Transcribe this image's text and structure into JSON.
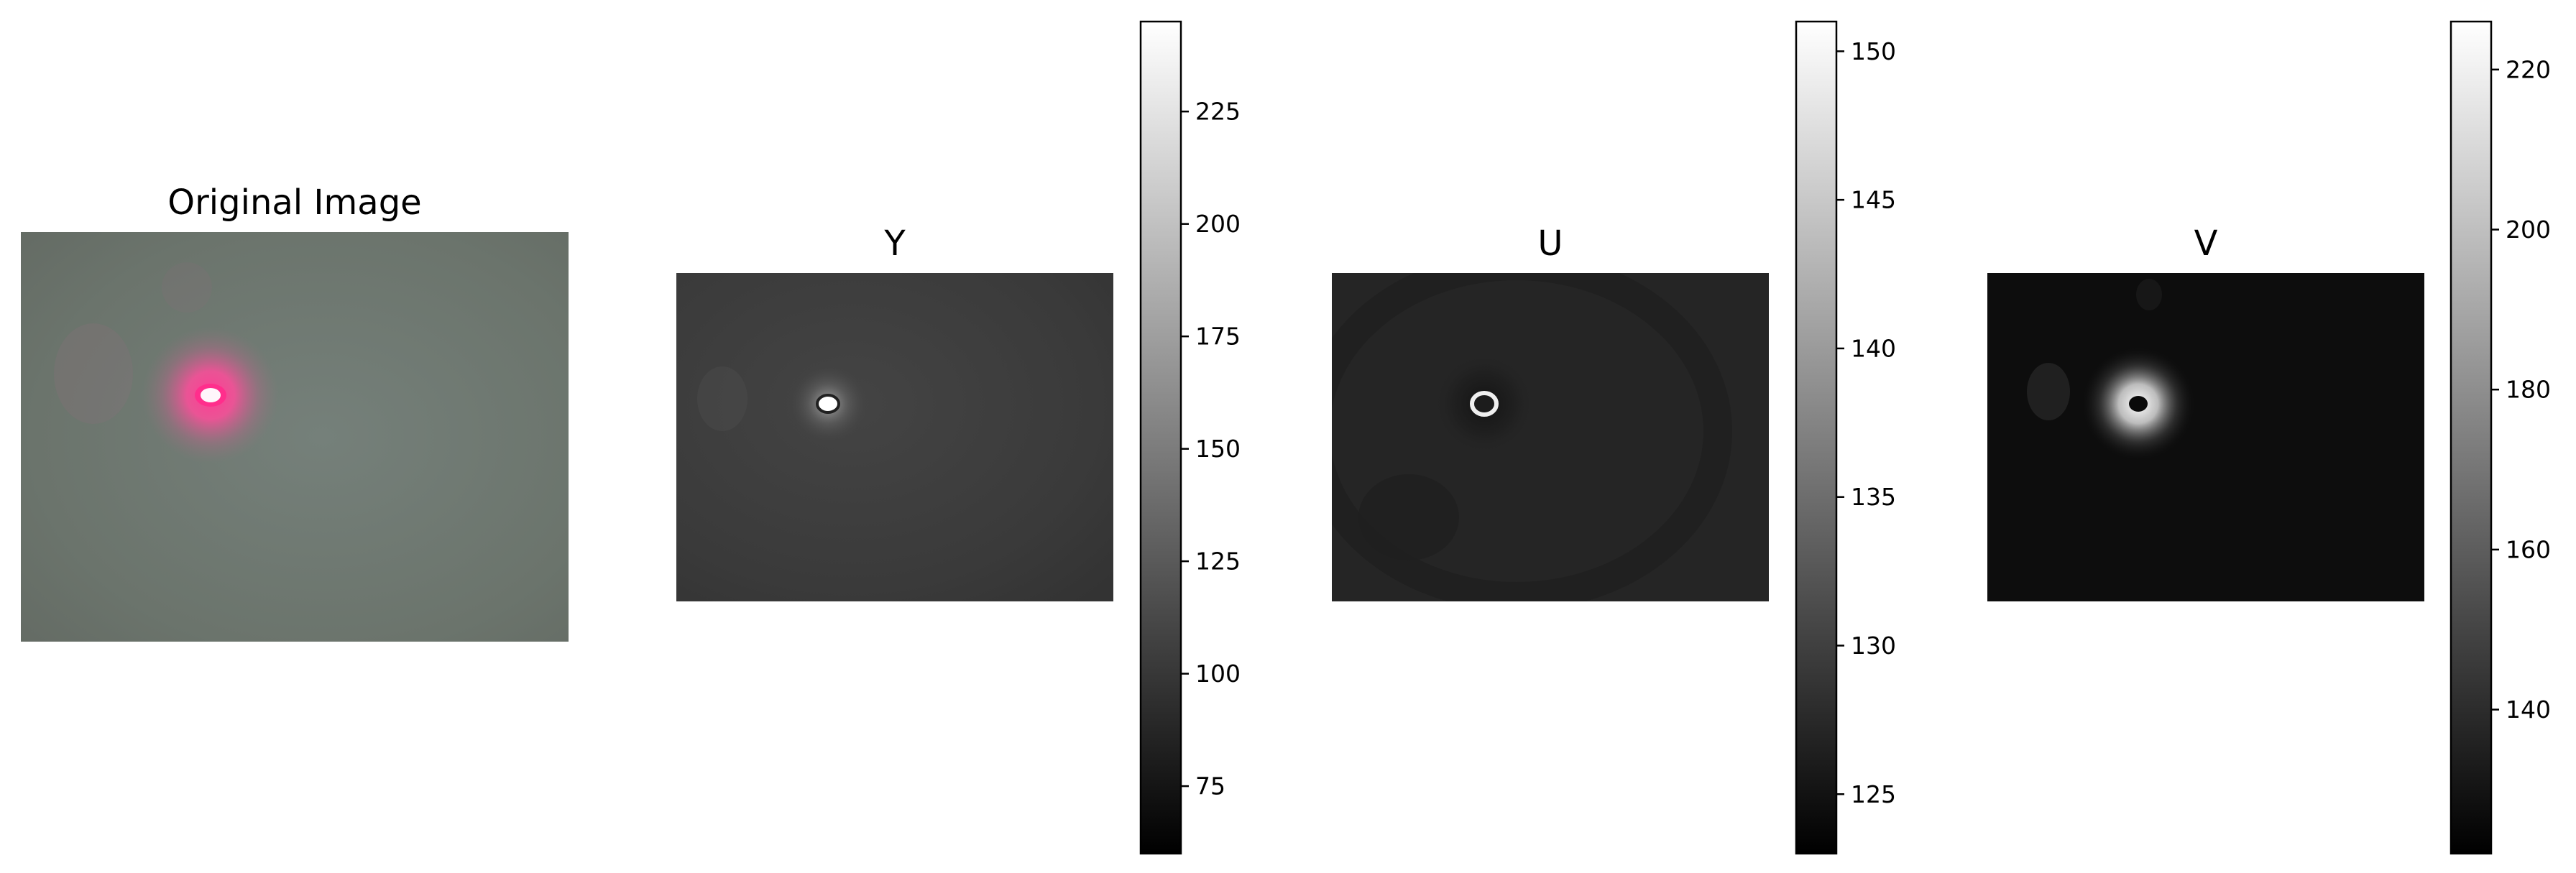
{
  "panels": [
    {
      "id": "original",
      "title": "Original Image",
      "image_kind": "rgb",
      "background_color": "#6b746c",
      "spot_color": "#ff3b94",
      "spot_core_color": "#fff6fb"
    },
    {
      "id": "y",
      "title": "Y",
      "image_kind": "grayscale",
      "background_color": "#3a3a3a",
      "spot_color": "#ffffff",
      "colorbar": {
        "range": [
          60,
          245
        ],
        "ticks": [
          "75",
          "100",
          "125",
          "150",
          "175",
          "200",
          "225"
        ],
        "tick_values": [
          75,
          100,
          125,
          150,
          175,
          200,
          225
        ]
      }
    },
    {
      "id": "u",
      "title": "U",
      "image_kind": "grayscale",
      "background_color": "#252525",
      "spot_color": "#f0f0f0",
      "colorbar": {
        "range": [
          123,
          151
        ],
        "ticks": [
          "125",
          "130",
          "135",
          "140",
          "145",
          "150"
        ],
        "tick_values": [
          125,
          130,
          135,
          140,
          145,
          150
        ]
      }
    },
    {
      "id": "v",
      "title": "V",
      "image_kind": "grayscale",
      "background_color": "#0d0d0d",
      "spot_color": "#ffffff",
      "colorbar": {
        "range": [
          122,
          226
        ],
        "ticks": [
          "140",
          "160",
          "180",
          "200",
          "220"
        ],
        "tick_values": [
          140,
          160,
          180,
          200,
          220
        ]
      }
    }
  ]
}
